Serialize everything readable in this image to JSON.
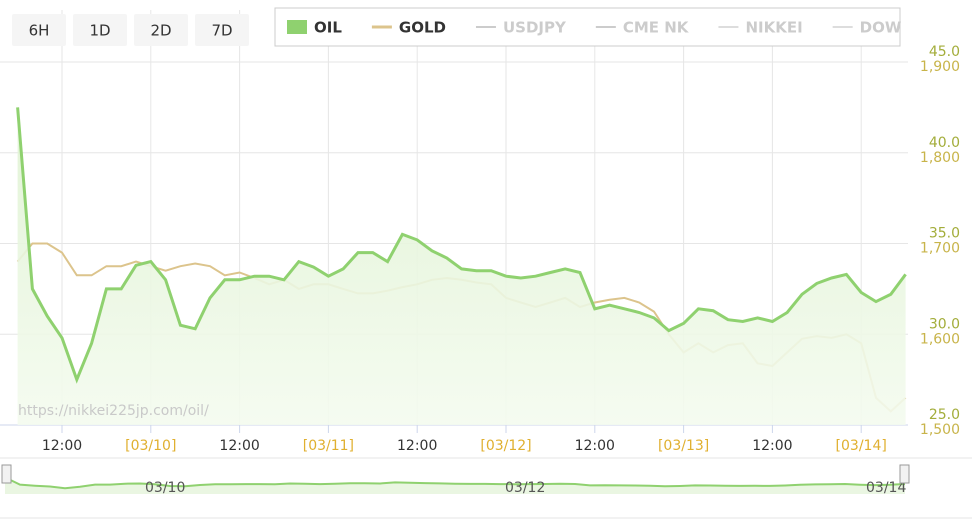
{
  "controls": {
    "ranges": [
      "6H",
      "1D",
      "2D",
      "7D"
    ]
  },
  "watermark": "https://nikkei225jp.com/oil/",
  "navigator": {
    "labels": [
      "03/10",
      "03/12",
      "03/14"
    ]
  },
  "chart_data": {
    "type": "line",
    "categories": [
      null,
      null,
      null,
      "12:00",
      null,
      null,
      null,
      null,
      null,
      "[03/10]",
      null,
      null,
      null,
      null,
      null,
      "12:00",
      null,
      null,
      null,
      null,
      null,
      "[03/11]",
      null,
      null,
      null,
      null,
      null,
      "12:00",
      null,
      null,
      null,
      null,
      null,
      "[03/12]",
      null,
      null,
      null,
      null,
      null,
      "12:00",
      null,
      null,
      null,
      null,
      null,
      "[03/13]",
      null,
      null,
      null,
      null,
      null,
      "12:00",
      null,
      null,
      null,
      null,
      null,
      "[03/14]",
      null,
      null,
      null
    ],
    "series": [
      {
        "name": "OIL",
        "color": "#8fd16f",
        "axis": "y",
        "values": [
          42.5,
          32.5,
          31,
          29.8,
          27.5,
          29.5,
          32.5,
          32.5,
          33.8,
          34,
          33,
          30.5,
          30.3,
          32,
          33,
          33,
          33.2,
          33.2,
          33,
          34,
          33.7,
          33.2,
          33.6,
          34.5,
          34.5,
          34,
          35.5,
          35.2,
          34.6,
          34.2,
          33.6,
          33.5,
          33.5,
          33.2,
          33.1,
          33.2,
          33.4,
          33.6,
          33.4,
          31.4,
          31.6,
          31.4,
          31.2,
          30.9,
          30.2,
          30.6,
          31.4,
          31.3,
          30.8,
          30.7,
          30.9,
          30.7,
          31.2,
          32.2,
          32.8,
          33.1,
          33.3,
          32.3,
          31.8,
          32.2,
          33.3
        ]
      },
      {
        "name": "GOLD",
        "color": "#dcc48c",
        "axis": "y2",
        "values": [
          1680,
          1700,
          1700,
          1690,
          1665,
          1665,
          1675,
          1675,
          1680,
          1675,
          1670,
          1675,
          1678,
          1675,
          1665,
          1668,
          1662,
          1655,
          1660,
          1650,
          1655,
          1655,
          1650,
          1645,
          1645,
          1648,
          1652,
          1655,
          1660,
          1662,
          1660,
          1657,
          1655,
          1640,
          1635,
          1630,
          1635,
          1640,
          1630,
          1635,
          1638,
          1640,
          1635,
          1625,
          1600,
          1580,
          1590,
          1580,
          1588,
          1590,
          1568,
          1565,
          1580,
          1595,
          1598,
          1596,
          1600,
          1590,
          1530,
          1515,
          1530
        ]
      }
    ],
    "hidden_series": [
      {
        "name": "USDJPY",
        "color": "#cccccc"
      },
      {
        "name": "CME NK",
        "color": "#cccccc"
      },
      {
        "name": "NIKKEI",
        "color": "#dddddd"
      },
      {
        "name": "DOW",
        "color": "#dddddd"
      }
    ],
    "ylim": [
      25,
      45
    ],
    "yticks": [
      {
        "value": 45,
        "label": "45.0"
      },
      {
        "value": 40,
        "label": "40.0"
      },
      {
        "value": 35,
        "label": "35.0"
      },
      {
        "value": 30,
        "label": "30.0"
      },
      {
        "value": 25,
        "label": "25.0"
      }
    ],
    "y2lim": [
      1500,
      1900
    ],
    "y2ticks": [
      {
        "value": 1900,
        "label": "1,900"
      },
      {
        "value": 1800,
        "label": "1,800"
      },
      {
        "value": 1700,
        "label": "1,700"
      },
      {
        "value": 1600,
        "label": "1,600"
      },
      {
        "value": 1500,
        "label": "1,500"
      }
    ],
    "ytick_color": "#a3ad3a",
    "y2tick_color": "#c8b44a",
    "grid": true
  }
}
